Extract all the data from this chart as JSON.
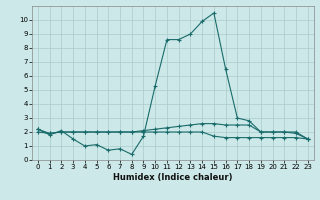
{
  "xlabel": "Humidex (Indice chaleur)",
  "ylabel": "",
  "xlim": [
    -0.5,
    23.5
  ],
  "ylim": [
    0,
    11
  ],
  "xticks": [
    0,
    1,
    2,
    3,
    4,
    5,
    6,
    7,
    8,
    9,
    10,
    11,
    12,
    13,
    14,
    15,
    16,
    17,
    18,
    19,
    20,
    21,
    22,
    23
  ],
  "yticks": [
    0,
    1,
    2,
    3,
    4,
    5,
    6,
    7,
    8,
    9,
    10
  ],
  "background_color": "#cce8e8",
  "grid_color": "#aacccc",
  "line_color": "#1a6b6b",
  "series1_x": [
    0,
    1,
    2,
    3,
    4,
    5,
    6,
    7,
    8,
    9,
    10,
    11,
    12,
    13,
    14,
    15,
    16,
    17,
    18,
    19,
    20,
    21,
    22,
    23
  ],
  "series1_y": [
    2.2,
    1.8,
    2.1,
    1.5,
    1.0,
    1.1,
    0.7,
    0.8,
    0.4,
    1.7,
    5.3,
    8.6,
    8.6,
    9.0,
    9.9,
    10.5,
    6.5,
    3.0,
    2.8,
    2.0,
    2.0,
    2.0,
    1.9,
    1.5
  ],
  "series2_x": [
    0,
    1,
    2,
    3,
    4,
    5,
    6,
    7,
    8,
    9,
    10,
    11,
    12,
    13,
    14,
    15,
    16,
    17,
    18,
    19,
    20,
    21,
    22,
    23
  ],
  "series2_y": [
    2.2,
    1.9,
    2.0,
    2.0,
    2.0,
    2.0,
    2.0,
    2.0,
    2.0,
    2.1,
    2.2,
    2.3,
    2.4,
    2.5,
    2.6,
    2.6,
    2.5,
    2.5,
    2.5,
    2.0,
    2.0,
    2.0,
    2.0,
    1.5
  ],
  "series3_x": [
    0,
    1,
    2,
    3,
    4,
    5,
    6,
    7,
    8,
    9,
    10,
    11,
    12,
    13,
    14,
    15,
    16,
    17,
    18,
    19,
    20,
    21,
    22,
    23
  ],
  "series3_y": [
    2.0,
    1.9,
    2.0,
    2.0,
    2.0,
    2.0,
    2.0,
    2.0,
    2.0,
    2.0,
    2.0,
    2.0,
    2.0,
    2.0,
    2.0,
    1.7,
    1.6,
    1.6,
    1.6,
    1.6,
    1.6,
    1.6,
    1.6,
    1.5
  ],
  "xlabel_fontsize": 6,
  "tick_fontsize": 5
}
